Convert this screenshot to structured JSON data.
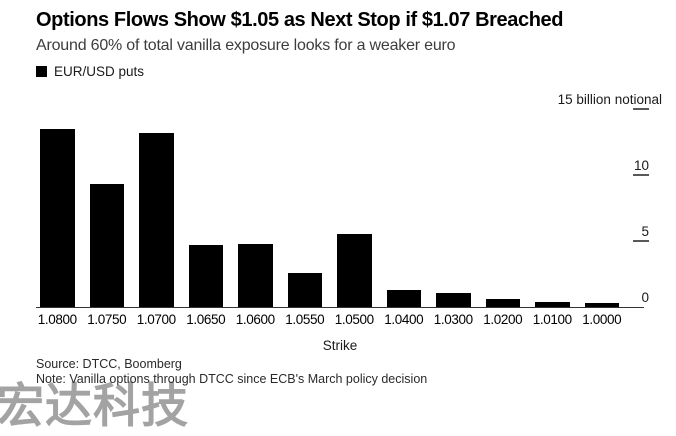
{
  "header": {
    "title": "Options Flows Show $1.05 as Next Stop if $1.07 Breached",
    "subtitle": "Around 60% of total vanilla exposure looks for a weaker euro"
  },
  "legend": {
    "swatch_color": "#000000",
    "label": "EUR/USD puts"
  },
  "chart_data": {
    "type": "bar",
    "title": "Options Flows Show $1.05 as Next Stop if $1.07 Breached",
    "subtitle": "Around 60% of total vanilla exposure looks for a weaker euro",
    "series_name": "EUR/USD puts",
    "bar_color": "#000000",
    "categories": [
      "1.0800",
      "1.0750",
      "1.0700",
      "1.0650",
      "1.0600",
      "1.0550",
      "1.0500",
      "1.0400",
      "1.0300",
      "1.0200",
      "1.0100",
      "1.0000"
    ],
    "values": [
      13.5,
      9.3,
      13.2,
      4.7,
      4.8,
      2.6,
      5.5,
      1.3,
      1.1,
      0.6,
      0.4,
      0.3
    ],
    "xlabel": "Strike",
    "y_axis": {
      "top_label": "15 billion notional",
      "ticks": [
        15,
        10,
        5,
        0
      ],
      "ylim": [
        0,
        15.2
      ],
      "side": "right",
      "unit": "billion notional"
    },
    "grid": false,
    "legend_position": "top-left"
  },
  "footer": {
    "source": "Source: DTCC, Boomberg",
    "note": "Note: Vanilla options through DTCC since ECB's March policy decision"
  },
  "watermark": {
    "text": "宏达科技",
    "color": "#909090"
  }
}
